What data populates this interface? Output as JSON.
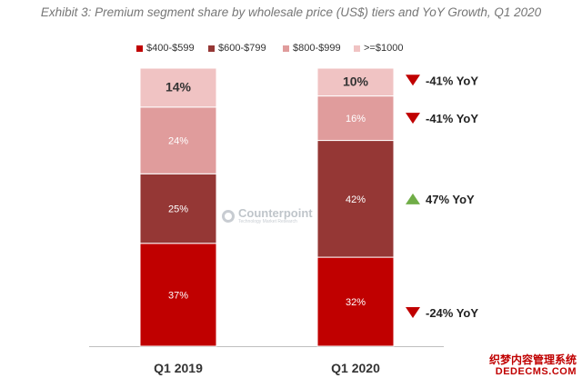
{
  "title": "Exhibit 3: Premium segment share by wholesale price (US$) tiers and YoY Growth, Q1 2020",
  "watermark": {
    "name": "Counterpoint",
    "sub": "Technology Market Research"
  },
  "corner_watermark": {
    "line1": "织梦内容管理系统",
    "line2": "DEDECMS.COM"
  },
  "colors": {
    "$400-$599": "#c00000",
    "$600-$799": "#953735",
    "$800-$999": "#e09c9c",
    ">=$1000": "#f0c3c3",
    "down_arrow": "#c00000",
    "up_arrow": "#70ad47"
  },
  "chart_data": {
    "type": "bar",
    "stacked": true,
    "categories": [
      "Q1 2019",
      "Q1 2020"
    ],
    "series": [
      {
        "name": "$400-$599",
        "values": [
          37,
          32
        ],
        "labels": [
          "37%",
          "32%"
        ]
      },
      {
        "name": "$600-$799",
        "values": [
          25,
          42
        ],
        "labels": [
          "25%",
          "42%"
        ]
      },
      {
        "name": "$800-$999",
        "values": [
          24,
          16
        ],
        "labels": [
          "24%",
          "16%"
        ]
      },
      {
        "name": ">=$1000",
        "values": [
          14,
          10
        ],
        "labels": [
          "14%",
          "10%"
        ]
      }
    ],
    "ylim": [
      0,
      100
    ],
    "legend_position": "top",
    "grid": false,
    "annotations": [
      {
        "series": ">=$1000",
        "text": "-41% YoY",
        "direction": "down"
      },
      {
        "series": "$800-$999",
        "text": "-41% YoY",
        "direction": "down"
      },
      {
        "series": "$600-$799",
        "text": "47% YoY",
        "direction": "up"
      },
      {
        "series": "$400-$599",
        "text": "-24% YoY",
        "direction": "down"
      }
    ]
  }
}
